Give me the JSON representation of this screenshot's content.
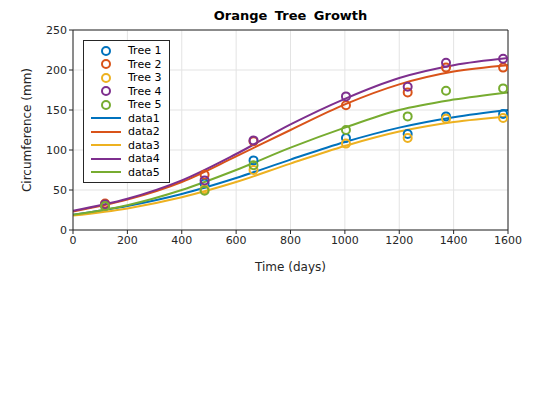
{
  "chart_data": {
    "type": "scatter",
    "title": "Orange Tree Growth",
    "x_label": "Time (days)",
    "y_label": "Circumference (mm)",
    "xlim": [
      0,
      1600
    ],
    "xticks": [
      0,
      200,
      400,
      600,
      800,
      1000,
      1200,
      1400,
      1600
    ],
    "ylim": [
      0,
      250
    ],
    "yticks": [
      0,
      50,
      100,
      150,
      200,
      250
    ],
    "grid": true,
    "legend": "northwest",
    "series": [
      {
        "name": "Tree 1",
        "type": "scatter",
        "marker": "o",
        "color": "#0072bd",
        "x": [
          118,
          484,
          664,
          1004,
          1231,
          1372,
          1582
        ],
        "values": [
          30,
          58,
          87,
          115,
          120,
          142,
          145
        ]
      },
      {
        "name": "Tree 2",
        "type": "scatter",
        "marker": "o",
        "color": "#d95319",
        "x": [
          118,
          484,
          664,
          1004,
          1231,
          1372,
          1582
        ],
        "values": [
          33,
          69,
          111,
          156,
          172,
          203,
          203
        ]
      },
      {
        "name": "Tree 3",
        "type": "scatter",
        "marker": "o",
        "color": "#edb120",
        "x": [
          118,
          484,
          664,
          1004,
          1231,
          1372,
          1582
        ],
        "values": [
          30,
          51,
          75,
          108,
          115,
          139,
          140
        ]
      },
      {
        "name": "Tree 4",
        "type": "scatter",
        "marker": "o",
        "color": "#7e2f8e",
        "x": [
          118,
          484,
          664,
          1004,
          1231,
          1372,
          1582
        ],
        "values": [
          32,
          62,
          112,
          167,
          179,
          209,
          214
        ]
      },
      {
        "name": "Tree 5",
        "type": "scatter",
        "marker": "o",
        "color": "#77ac30",
        "x": [
          118,
          484,
          664,
          1004,
          1231,
          1372,
          1582
        ],
        "values": [
          30,
          49,
          81,
          125,
          142,
          174,
          177
        ]
      },
      {
        "name": "data1",
        "type": "line",
        "line_style": "solid",
        "color": "#0072bd",
        "x": [
          0,
          200,
          400,
          600,
          800,
          1000,
          1200,
          1400,
          1600
        ],
        "values": [
          19,
          30,
          45,
          65,
          88,
          110,
          128,
          141,
          150
        ]
      },
      {
        "name": "data2",
        "type": "line",
        "line_style": "solid",
        "color": "#d95319",
        "x": [
          0,
          200,
          400,
          600,
          800,
          1000,
          1200,
          1400,
          1600
        ],
        "values": [
          23,
          38,
          60,
          92,
          125,
          157,
          182,
          198,
          206
        ]
      },
      {
        "name": "data3",
        "type": "line",
        "line_style": "solid",
        "color": "#edb120",
        "x": [
          0,
          200,
          400,
          600,
          800,
          1000,
          1200,
          1400,
          1600
        ],
        "values": [
          18,
          27,
          41,
          60,
          83,
          105,
          123,
          135,
          142
        ]
      },
      {
        "name": "data4",
        "type": "line",
        "line_style": "solid",
        "color": "#7e2f8e",
        "x": [
          0,
          200,
          400,
          600,
          800,
          1000,
          1200,
          1400,
          1600
        ],
        "values": [
          24,
          39,
          62,
          95,
          132,
          164,
          190,
          206,
          215
        ]
      },
      {
        "name": "data5",
        "type": "line",
        "line_style": "solid",
        "color": "#77ac30",
        "x": [
          0,
          200,
          400,
          600,
          800,
          1000,
          1200,
          1400,
          1600
        ],
        "values": [
          19,
          31,
          50,
          75,
          103,
          128,
          150,
          163,
          172
        ]
      }
    ]
  }
}
